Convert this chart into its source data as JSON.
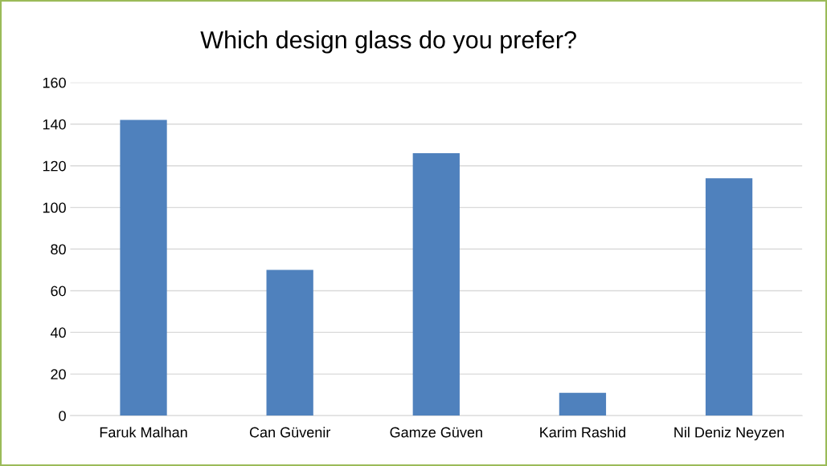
{
  "chart_data": {
    "type": "bar",
    "title": "Which design glass do you prefer?",
    "categories": [
      "Faruk Malhan",
      "Can Güvenir",
      "Gamze Güven",
      "Karim Rashid",
      "Nil Deniz Neyzen"
    ],
    "values": [
      142,
      70,
      126,
      11,
      114
    ],
    "color": "#4f81bd",
    "ylim": [
      0,
      160
    ],
    "yticks": [
      0,
      20,
      40,
      60,
      80,
      100,
      120,
      140,
      160
    ],
    "grid": "y"
  }
}
